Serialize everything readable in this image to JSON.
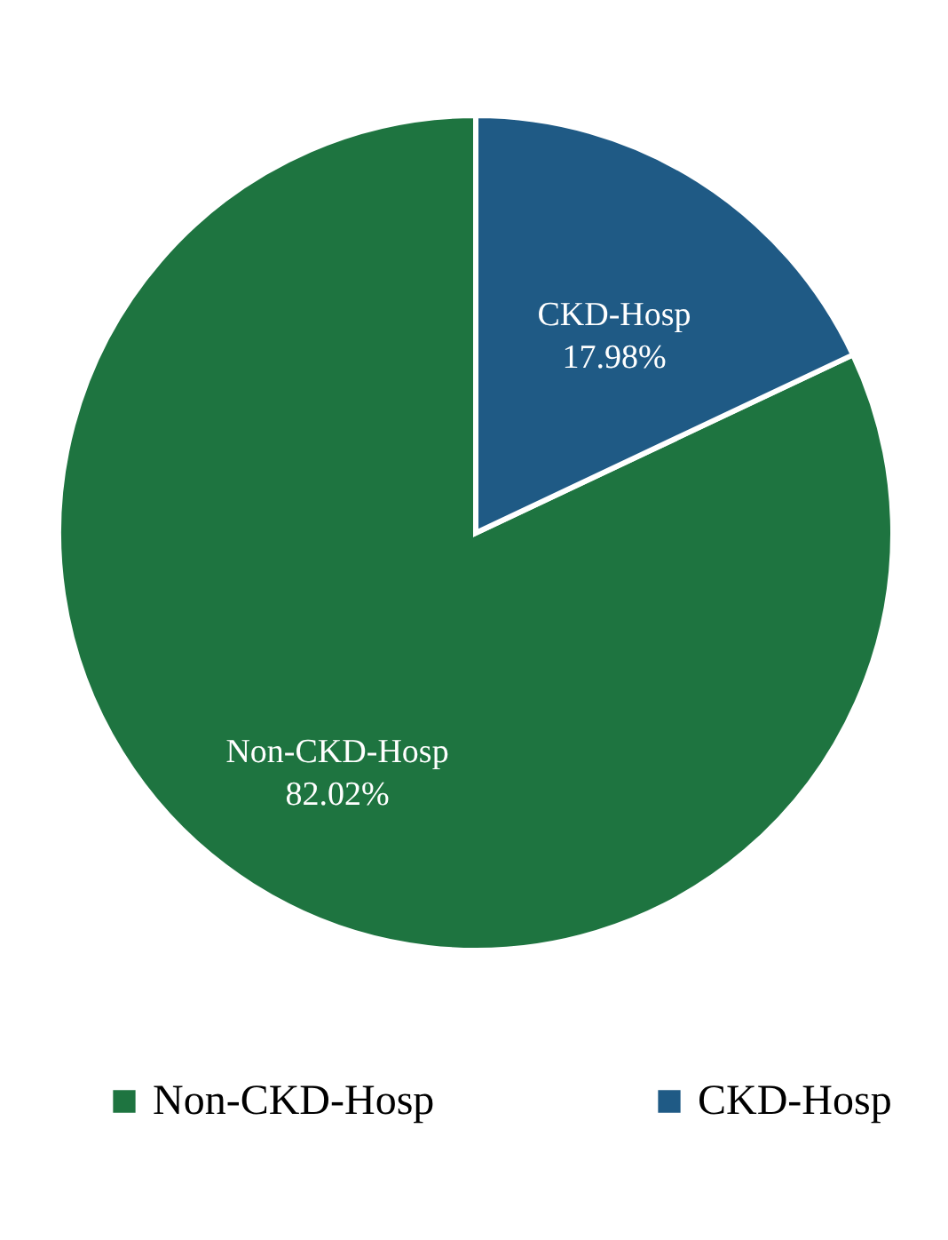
{
  "chart_data": {
    "type": "pie",
    "categories": [
      "Non-CKD-Hosp",
      "CKD-Hosp"
    ],
    "values": [
      82.02,
      17.98
    ],
    "colors": [
      "#1e7440",
      "#1f5a85"
    ],
    "value_labels": [
      "82.02%",
      "17.98%"
    ],
    "legend": "bottom"
  }
}
